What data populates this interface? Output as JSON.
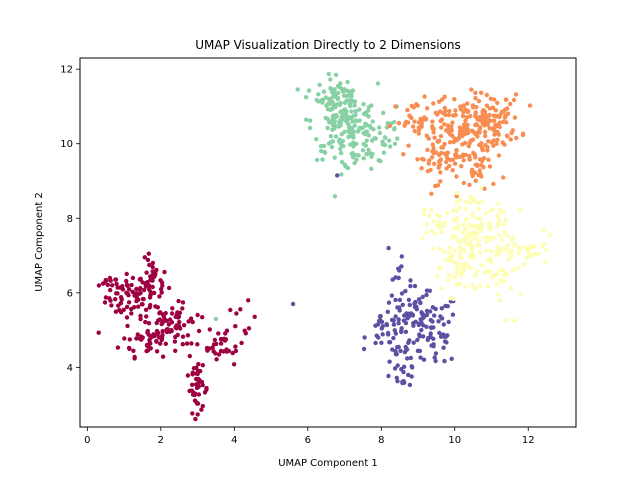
{
  "chart_data": {
    "type": "scatter",
    "title": "UMAP Visualization Directly to 2 Dimensions",
    "xlabel": "UMAP Component 1",
    "ylabel": "UMAP Component 2",
    "xlim": [
      -0.2,
      13.3
    ],
    "ylim": [
      2.4,
      12.3
    ],
    "xticks": [
      0,
      2,
      4,
      6,
      8,
      10,
      12
    ],
    "yticks": [
      4,
      6,
      8,
      10,
      12
    ],
    "grid": false,
    "legend": "none",
    "clusters": [
      {
        "color": "#9e0142",
        "regions": [
          {
            "x": 1.2,
            "y": 5.9,
            "sx": 0.35,
            "sy": 0.3,
            "n": 70
          },
          {
            "x": 1.8,
            "y": 6.3,
            "sx": 0.2,
            "sy": 0.3,
            "n": 30
          },
          {
            "x": 0.6,
            "y": 6.3,
            "sx": 0.15,
            "sy": 0.07,
            "n": 10
          },
          {
            "x": 2.0,
            "y": 5.3,
            "sx": 0.4,
            "sy": 0.3,
            "n": 45
          },
          {
            "x": 1.7,
            "y": 4.7,
            "sx": 0.4,
            "sy": 0.2,
            "n": 45
          },
          {
            "x": 2.5,
            "y": 5.1,
            "sx": 0.3,
            "sy": 0.3,
            "n": 25
          },
          {
            "x": 3.7,
            "y": 4.6,
            "sx": 0.3,
            "sy": 0.18,
            "n": 30
          },
          {
            "x": 4.2,
            "y": 5.1,
            "sx": 0.2,
            "sy": 0.3,
            "n": 10
          },
          {
            "x": 3.0,
            "y": 3.4,
            "sx": 0.15,
            "sy": 0.3,
            "n": 35
          },
          {
            "x": 3.0,
            "y": 3.9,
            "sx": 0.08,
            "sy": 0.15,
            "n": 8
          }
        ]
      },
      {
        "color": "#5e4fa2",
        "regions": [
          {
            "x": 8.7,
            "y": 5.4,
            "sx": 0.35,
            "sy": 0.4,
            "n": 60
          },
          {
            "x": 9.4,
            "y": 5.0,
            "sx": 0.35,
            "sy": 0.5,
            "n": 60
          },
          {
            "x": 8.1,
            "y": 5.0,
            "sx": 0.25,
            "sy": 0.2,
            "n": 20
          },
          {
            "x": 8.7,
            "y": 4.4,
            "sx": 0.3,
            "sy": 0.25,
            "n": 25
          },
          {
            "x": 8.6,
            "y": 3.8,
            "sx": 0.18,
            "sy": 0.15,
            "n": 15
          },
          {
            "x": 8.5,
            "y": 6.5,
            "sx": 0.1,
            "sy": 0.2,
            "n": 6
          }
        ],
        "extra": [
          [
            5.6,
            5.7
          ],
          [
            6.8,
            9.15
          ],
          [
            8.2,
            7.2
          ]
        ]
      },
      {
        "color": "#88d1a4",
        "regions": [
          {
            "x": 7.0,
            "y": 10.6,
            "sx": 0.45,
            "sy": 0.5,
            "n": 180
          },
          {
            "x": 6.6,
            "y": 11.4,
            "sx": 0.3,
            "sy": 0.25,
            "n": 25
          },
          {
            "x": 7.6,
            "y": 10.1,
            "sx": 0.35,
            "sy": 0.4,
            "n": 40
          },
          {
            "x": 8.2,
            "y": 10.2,
            "sx": 0.15,
            "sy": 0.35,
            "n": 10
          }
        ],
        "extra": [
          [
            3.5,
            5.3
          ]
        ]
      },
      {
        "color": "#f88d52",
        "regions": [
          {
            "x": 10.1,
            "y": 10.4,
            "sx": 0.55,
            "sy": 0.45,
            "n": 140
          },
          {
            "x": 11.0,
            "y": 10.6,
            "sx": 0.4,
            "sy": 0.35,
            "n": 90
          },
          {
            "x": 9.5,
            "y": 9.6,
            "sx": 0.3,
            "sy": 0.3,
            "n": 40
          },
          {
            "x": 8.9,
            "y": 10.6,
            "sx": 0.3,
            "sy": 0.25,
            "n": 25
          },
          {
            "x": 10.6,
            "y": 9.3,
            "sx": 0.4,
            "sy": 0.25,
            "n": 40
          }
        ]
      },
      {
        "color": "#fefdb4",
        "regions": [
          {
            "x": 10.6,
            "y": 7.3,
            "sx": 0.5,
            "sy": 0.5,
            "n": 130
          },
          {
            "x": 9.6,
            "y": 7.9,
            "sx": 0.4,
            "sy": 0.3,
            "n": 30
          },
          {
            "x": 11.3,
            "y": 6.5,
            "sx": 0.3,
            "sy": 0.5,
            "n": 30
          },
          {
            "x": 12.2,
            "y": 7.1,
            "sx": 0.25,
            "sy": 0.2,
            "n": 20
          },
          {
            "x": 10.0,
            "y": 6.6,
            "sx": 0.3,
            "sy": 0.35,
            "n": 25
          },
          {
            "x": 10.6,
            "y": 8.3,
            "sx": 0.4,
            "sy": 0.2,
            "n": 20
          }
        ]
      }
    ]
  }
}
